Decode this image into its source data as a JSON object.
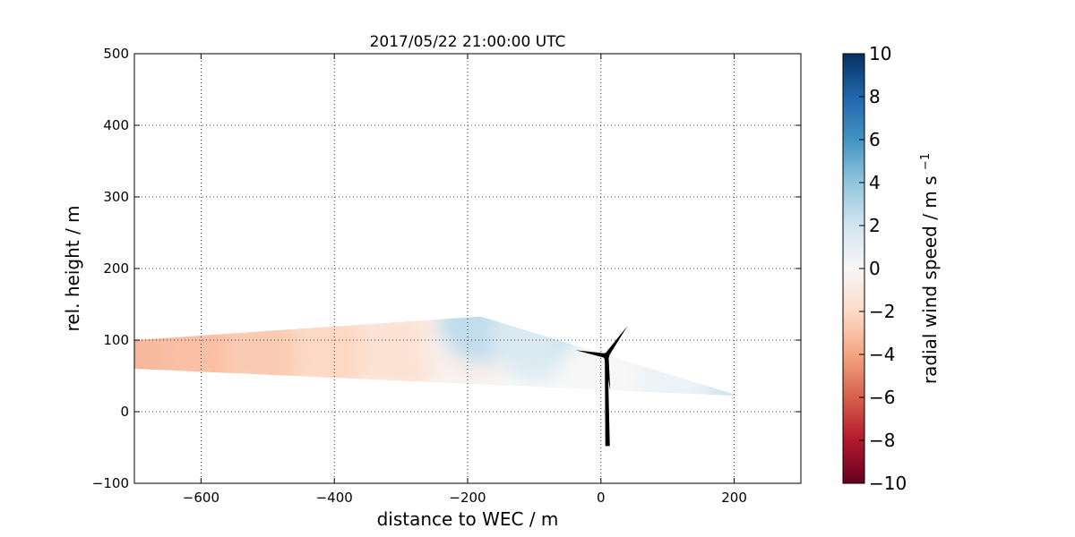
{
  "chart_data": {
    "type": "heatmap",
    "title": "2017/05/22 21:00:00 UTC",
    "xlabel": "distance to WEC / m",
    "ylabel": "rel. height / m",
    "xlim": [
      -700,
      300
    ],
    "ylim": [
      -100,
      500
    ],
    "x_ticks": [
      -600,
      -400,
      -200,
      0,
      200
    ],
    "x_tick_labels": [
      "−600",
      "−400",
      "−200",
      "0",
      "200"
    ],
    "y_ticks": [
      -100,
      0,
      100,
      200,
      300,
      400,
      500
    ],
    "y_tick_labels": [
      "−100",
      "0",
      "100",
      "200",
      "300",
      "400",
      "500"
    ],
    "grid": true,
    "colorbar": {
      "label": "radial wind speed / m s",
      "label_superscript": "−1",
      "vmin": -10,
      "vmax": 10,
      "ticks": [
        10,
        8,
        6,
        4,
        2,
        0,
        -2,
        -4,
        -6,
        -8,
        -10
      ],
      "tick_labels": [
        "10",
        "8",
        "6",
        "4",
        "2",
        "0",
        "−2",
        "−4",
        "−6",
        "−8",
        "−10"
      ],
      "colormap": "RdBu",
      "stops": [
        "#67001f",
        "#b2182b",
        "#d6604d",
        "#f4a582",
        "#fddbc7",
        "#f7f7f7",
        "#d1e5f0",
        "#92c5de",
        "#4393c3",
        "#2166ac",
        "#053061"
      ]
    },
    "scan_region": {
      "outline": [
        [
          -700,
          100
        ],
        [
          -180,
          133
        ],
        [
          208,
          22
        ],
        [
          -700,
          60
        ]
      ],
      "samples": [
        {
          "x": -690,
          "y": 80,
          "speed": -3.3
        },
        {
          "x": -600,
          "y": 80,
          "speed": -3.0
        },
        {
          "x": -500,
          "y": 82,
          "speed": -2.6
        },
        {
          "x": -400,
          "y": 85,
          "speed": -2.1
        },
        {
          "x": -300,
          "y": 85,
          "speed": -1.5
        },
        {
          "x": -200,
          "y": 90,
          "speed": -0.5
        },
        {
          "x": -180,
          "y": 128,
          "speed": 2.5
        },
        {
          "x": -100,
          "y": 105,
          "speed": 1.5
        },
        {
          "x": 0,
          "y": 85,
          "speed": 2.6
        },
        {
          "x": 100,
          "y": 55,
          "speed": 2.2
        },
        {
          "x": 200,
          "y": 25,
          "speed": 2.0
        },
        {
          "x": 100,
          "y": 40,
          "speed": 0.6
        },
        {
          "x": 0,
          "y": 50,
          "speed": 0.0
        }
      ]
    },
    "turbine": {
      "hub": [
        8,
        78
      ],
      "tower_base": [
        10,
        -48
      ],
      "blade_tips": [
        [
          40,
          120
        ],
        [
          -38,
          86
        ],
        [
          14,
          30
        ]
      ]
    }
  }
}
